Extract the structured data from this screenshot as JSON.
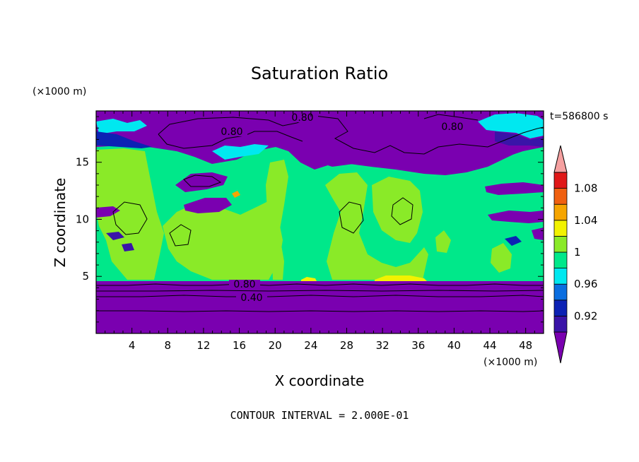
{
  "chart_data": {
    "type": "heatmap",
    "title": "Saturation Ratio",
    "xlabel": "X coordinate",
    "ylabel": "Z coordinate",
    "x_unit": "(×1000 m)",
    "y_unit": "(×1000 m)",
    "time_label": "t=586800 s",
    "footer": "CONTOUR INTERVAL = 2.000E-01",
    "xlim": [
      0,
      50
    ],
    "ylim": [
      0,
      19.5
    ],
    "x_ticks": [
      4,
      8,
      12,
      16,
      20,
      24,
      28,
      32,
      36,
      40,
      44,
      48
    ],
    "y_ticks": [
      5,
      10,
      15
    ],
    "colorbar": {
      "levels": [
        0.92,
        0.94,
        0.96,
        0.98,
        1.0,
        1.02,
        1.04,
        1.06,
        1.08,
        1.1
      ],
      "tick_labels": [
        "0.92",
        "0.96",
        "1",
        "1.04",
        "1.08"
      ],
      "tick_values": [
        0.92,
        0.96,
        1.0,
        1.04,
        1.08
      ],
      "colors": [
        "#7a00b0",
        "#3a14a8",
        "#0c22b4",
        "#0a6ee0",
        "#00e8f0",
        "#00e88a",
        "#8aea28",
        "#f2f200",
        "#f6a500",
        "#f06010",
        "#e01818",
        "#f5a0a0"
      ]
    },
    "contour_labels": [
      "0.80",
      "0.80",
      "0.80",
      "0.80",
      "0.40"
    ],
    "colors": {
      "background": "#ffffff",
      "very_dry": "#7a00b0",
      "near_saturated": "#00e88a",
      "saturated": "#8aea28",
      "supersaturated": "#f2f200"
    }
  }
}
